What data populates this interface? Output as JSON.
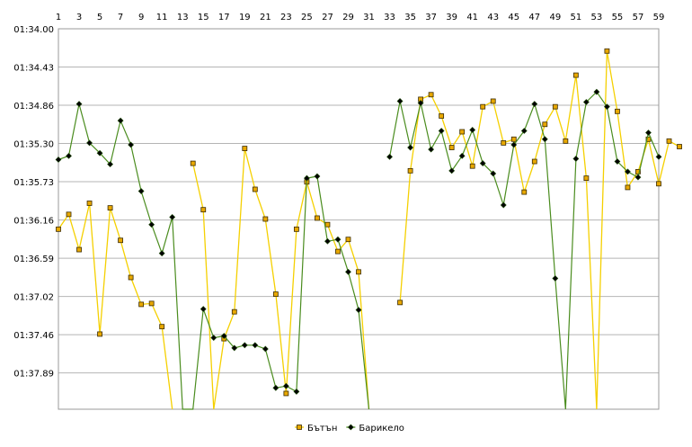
{
  "chart_data": {
    "type": "line",
    "x_ticks": [
      1,
      3,
      5,
      7,
      9,
      11,
      13,
      15,
      17,
      19,
      21,
      23,
      25,
      27,
      29,
      31,
      33,
      35,
      37,
      39,
      41,
      43,
      45,
      47,
      49,
      51,
      53,
      55,
      57,
      59
    ],
    "x_range": [
      1,
      59
    ],
    "y_tick_labels": [
      "01:34.00",
      "01:34.43",
      "01:34.86",
      "01:35.30",
      "01:35.73",
      "01:36.16",
      "01:36.59",
      "01:37.02",
      "01:37.46",
      "01:37.89"
    ],
    "y_range_seconds": [
      94.0,
      98.1
    ],
    "y_inverted": true,
    "grid": true,
    "legend_position": "bottom-center",
    "series": [
      {
        "name": "Бътън",
        "color": "#f5d000",
        "marker_fill": "#e8a800",
        "values": [
          96.16,
          96.0,
          96.38,
          95.88,
          97.29,
          95.93,
          96.28,
          96.68,
          96.97,
          96.96,
          97.21,
          98.3,
          null,
          95.45,
          95.95,
          98.3,
          97.34,
          97.05,
          95.29,
          95.73,
          96.05,
          96.86,
          97.93,
          96.16,
          95.65,
          96.04,
          96.11,
          96.4,
          96.27,
          96.62,
          98.3,
          null,
          null,
          96.95,
          95.53,
          94.76,
          94.71,
          94.94,
          95.28,
          95.11,
          95.48,
          94.84,
          94.78,
          95.23,
          95.19,
          95.76,
          95.43,
          95.03,
          94.84,
          95.21,
          94.5,
          95.61,
          98.3,
          94.24,
          94.89,
          95.71,
          95.54,
          95.19,
          95.67,
          95.21,
          95.27
        ]
      },
      {
        "name": "Барикело",
        "color": "#4a8c1e",
        "marker_fill": "#000000",
        "values": [
          95.41,
          95.37,
          94.81,
          95.23,
          95.34,
          95.46,
          94.99,
          95.25,
          95.75,
          96.11,
          96.42,
          96.03,
          98.3,
          98.3,
          97.02,
          97.33,
          97.31,
          97.44,
          97.41,
          97.41,
          97.45,
          97.87,
          97.85,
          97.91,
          95.61,
          95.59,
          96.29,
          96.27,
          96.62,
          97.03,
          98.3,
          null,
          95.38,
          94.78,
          95.28,
          94.8,
          95.3,
          95.1,
          95.53,
          95.37,
          95.09,
          95.45,
          95.56,
          95.9,
          95.25,
          95.1,
          94.81,
          95.19,
          96.69,
          98.3,
          95.4,
          94.79,
          94.68,
          94.84,
          95.43,
          95.54,
          95.6,
          95.12,
          95.38
        ]
      }
    ]
  }
}
